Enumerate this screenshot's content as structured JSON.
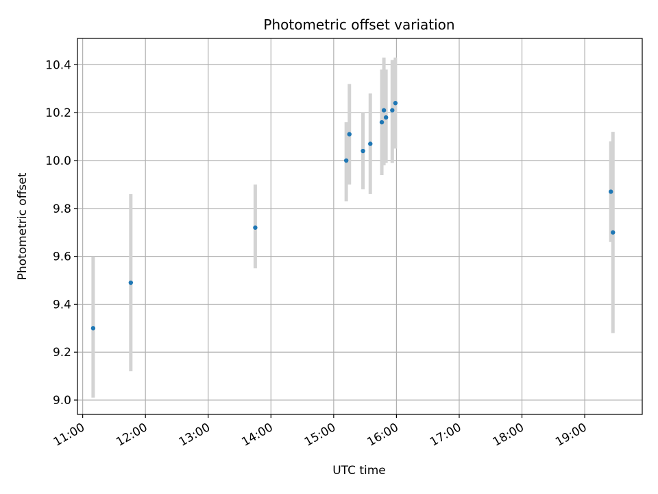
{
  "chart_data": {
    "type": "scatter",
    "title": "Photometric offset variation",
    "xlabel": "UTC time",
    "ylabel": "Photometric offset",
    "x_axis_kind": "time",
    "xlim": [
      "10:55",
      "19:55"
    ],
    "ylim": [
      8.94,
      10.51
    ],
    "grid": true,
    "x_ticks": [
      "11:00",
      "12:00",
      "13:00",
      "14:00",
      "15:00",
      "16:00",
      "17:00",
      "18:00",
      "19:00"
    ],
    "y_ticks": [
      "9.0",
      "9.2",
      "9.4",
      "9.6",
      "9.8",
      "10.0",
      "10.2",
      "10.4"
    ],
    "marker_color": "#1f77b4",
    "errorbar_color": "#d3d3d3",
    "series": [
      {
        "points": [
          {
            "x": "11:10",
            "y": 9.3,
            "err_low": 9.01,
            "err_high": 9.6
          },
          {
            "x": "11:46",
            "y": 9.49,
            "err_low": 9.12,
            "err_high": 9.86
          },
          {
            "x": "13:45",
            "y": 9.72,
            "err_low": 9.55,
            "err_high": 9.9
          },
          {
            "x": "15:12",
            "y": 10.0,
            "err_low": 9.83,
            "err_high": 10.16
          },
          {
            "x": "15:15",
            "y": 10.11,
            "err_low": 9.9,
            "err_high": 10.32
          },
          {
            "x": "15:28",
            "y": 10.04,
            "err_low": 9.88,
            "err_high": 10.2
          },
          {
            "x": "15:35",
            "y": 10.07,
            "err_low": 9.86,
            "err_high": 10.28
          },
          {
            "x": "15:46",
            "y": 10.16,
            "err_low": 9.94,
            "err_high": 10.38
          },
          {
            "x": "15:48",
            "y": 10.21,
            "err_low": 9.98,
            "err_high": 10.43
          },
          {
            "x": "15:50",
            "y": 10.18,
            "err_low": 9.99,
            "err_high": 10.38
          },
          {
            "x": "15:56",
            "y": 10.21,
            "err_low": 9.99,
            "err_high": 10.42
          },
          {
            "x": "15:59",
            "y": 10.24,
            "err_low": 10.05,
            "err_high": 10.43
          },
          {
            "x": "19:25",
            "y": 9.87,
            "err_low": 9.66,
            "err_high": 10.08
          },
          {
            "x": "19:27",
            "y": 9.7,
            "err_low": 9.28,
            "err_high": 10.12
          }
        ]
      }
    ]
  }
}
